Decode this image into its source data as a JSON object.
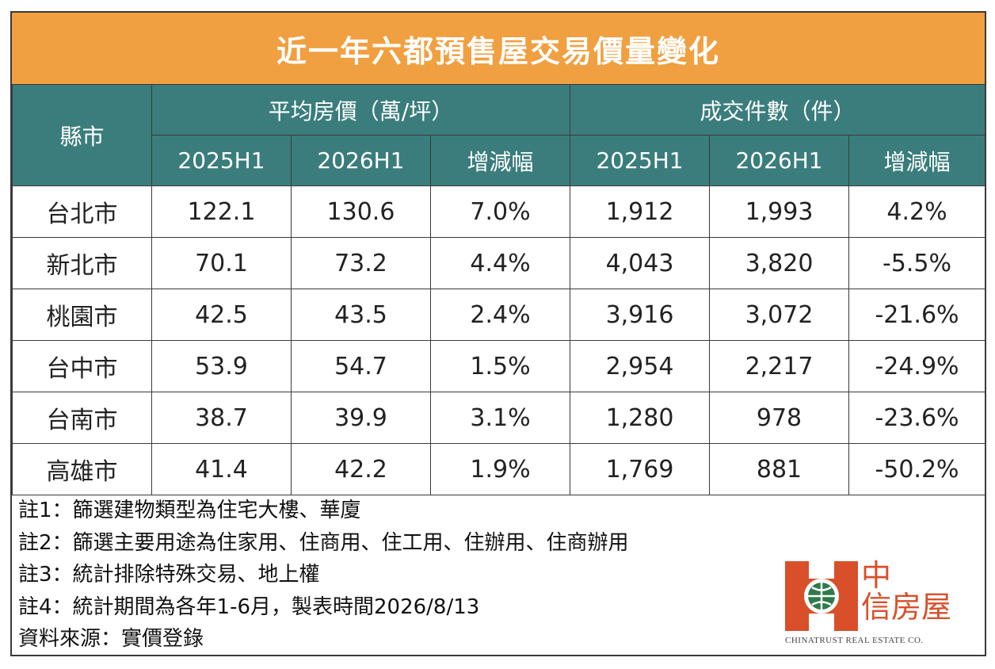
{
  "title": "近一年六都預售屋交易價量變化",
  "header": {
    "city": "縣市",
    "price_group": "平均房價（萬/坪）",
    "count_group": "成交件數（件）",
    "h2025": "2025H1",
    "h2026": "2026H1",
    "change": "增減幅"
  },
  "rows": [
    {
      "city": "台北市",
      "p2025": "122.1",
      "p2026": "130.6",
      "pchg": "7.0%",
      "c2025": "1,912",
      "c2026": "1,993",
      "cchg": "4.2%"
    },
    {
      "city": "新北市",
      "p2025": "70.1",
      "p2026": "73.2",
      "pchg": "4.4%",
      "c2025": "4,043",
      "c2026": "3,820",
      "cchg": "-5.5%"
    },
    {
      "city": "桃園市",
      "p2025": "42.5",
      "p2026": "43.5",
      "pchg": "2.4%",
      "c2025": "3,916",
      "c2026": "3,072",
      "cchg": "-21.6%"
    },
    {
      "city": "台中市",
      "p2025": "53.9",
      "p2026": "54.7",
      "pchg": "1.5%",
      "c2025": "2,954",
      "c2026": "2,217",
      "cchg": "-24.9%"
    },
    {
      "city": "台南市",
      "p2025": "38.7",
      "p2026": "39.9",
      "pchg": "3.1%",
      "c2025": "1,280",
      "c2026": "978",
      "cchg": "-23.6%"
    },
    {
      "city": "高雄市",
      "p2025": "41.4",
      "p2026": "42.2",
      "pchg": "1.9%",
      "c2025": "1,769",
      "c2026": "881",
      "cchg": "-50.2%"
    }
  ],
  "notes": [
    "註1：篩選建物類型為住宅大樓、華廈",
    "註2：篩選主要用途為住家用、住商用、住工用、住辦用、住商辦用",
    "註3：統計排除特殊交易、地上權",
    "註4：統計期間為各年1-6月，製表時間2026/8/13",
    "資料來源：實價登錄"
  ],
  "logo": {
    "line1": "中",
    "line2": "信房屋",
    "sub": "CHINATRUST REAL ESTATE CO."
  },
  "colors": {
    "title_bg": "#f0a040",
    "header_bg": "#3a7d7c",
    "increase": "#e03030",
    "decrease": "#3cae4a",
    "logo": "#d94f2a"
  }
}
